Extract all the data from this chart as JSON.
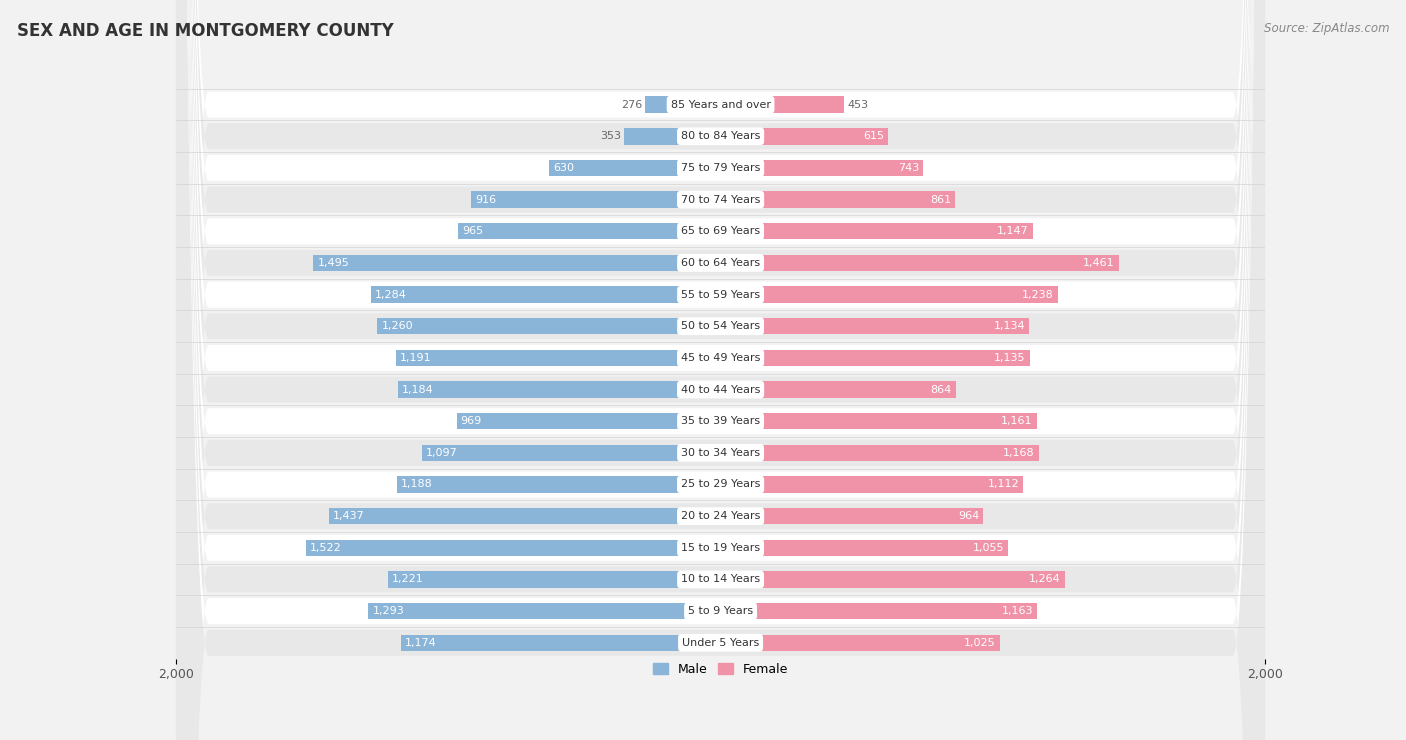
{
  "title": "SEX AND AGE IN MONTGOMERY COUNTY",
  "source": "Source: ZipAtlas.com",
  "age_groups": [
    "85 Years and over",
    "80 to 84 Years",
    "75 to 79 Years",
    "70 to 74 Years",
    "65 to 69 Years",
    "60 to 64 Years",
    "55 to 59 Years",
    "50 to 54 Years",
    "45 to 49 Years",
    "40 to 44 Years",
    "35 to 39 Years",
    "30 to 34 Years",
    "25 to 29 Years",
    "20 to 24 Years",
    "15 to 19 Years",
    "10 to 14 Years",
    "5 to 9 Years",
    "Under 5 Years"
  ],
  "male_values": [
    276,
    353,
    630,
    916,
    965,
    1495,
    1284,
    1260,
    1191,
    1184,
    969,
    1097,
    1188,
    1437,
    1522,
    1221,
    1293,
    1174
  ],
  "female_values": [
    453,
    615,
    743,
    861,
    1147,
    1461,
    1238,
    1134,
    1135,
    864,
    1161,
    1168,
    1112,
    964,
    1055,
    1264,
    1163,
    1025
  ],
  "male_color": "#8ab4d8",
  "female_color": "#f093a8",
  "male_label_color_outside": "#666666",
  "male_label_color_inside": "#ffffff",
  "female_label_color_outside": "#666666",
  "female_label_color_inside": "#ffffff",
  "background_color": "#f2f2f2",
  "row_white_color": "#ffffff",
  "row_gray_color": "#e8e8e8",
  "xlim": 2000,
  "bar_height": 0.52,
  "title_fontsize": 12,
  "source_fontsize": 8.5,
  "label_fontsize": 8,
  "category_fontsize": 8,
  "axis_fontsize": 9,
  "legend_fontsize": 9,
  "inside_threshold": 500
}
